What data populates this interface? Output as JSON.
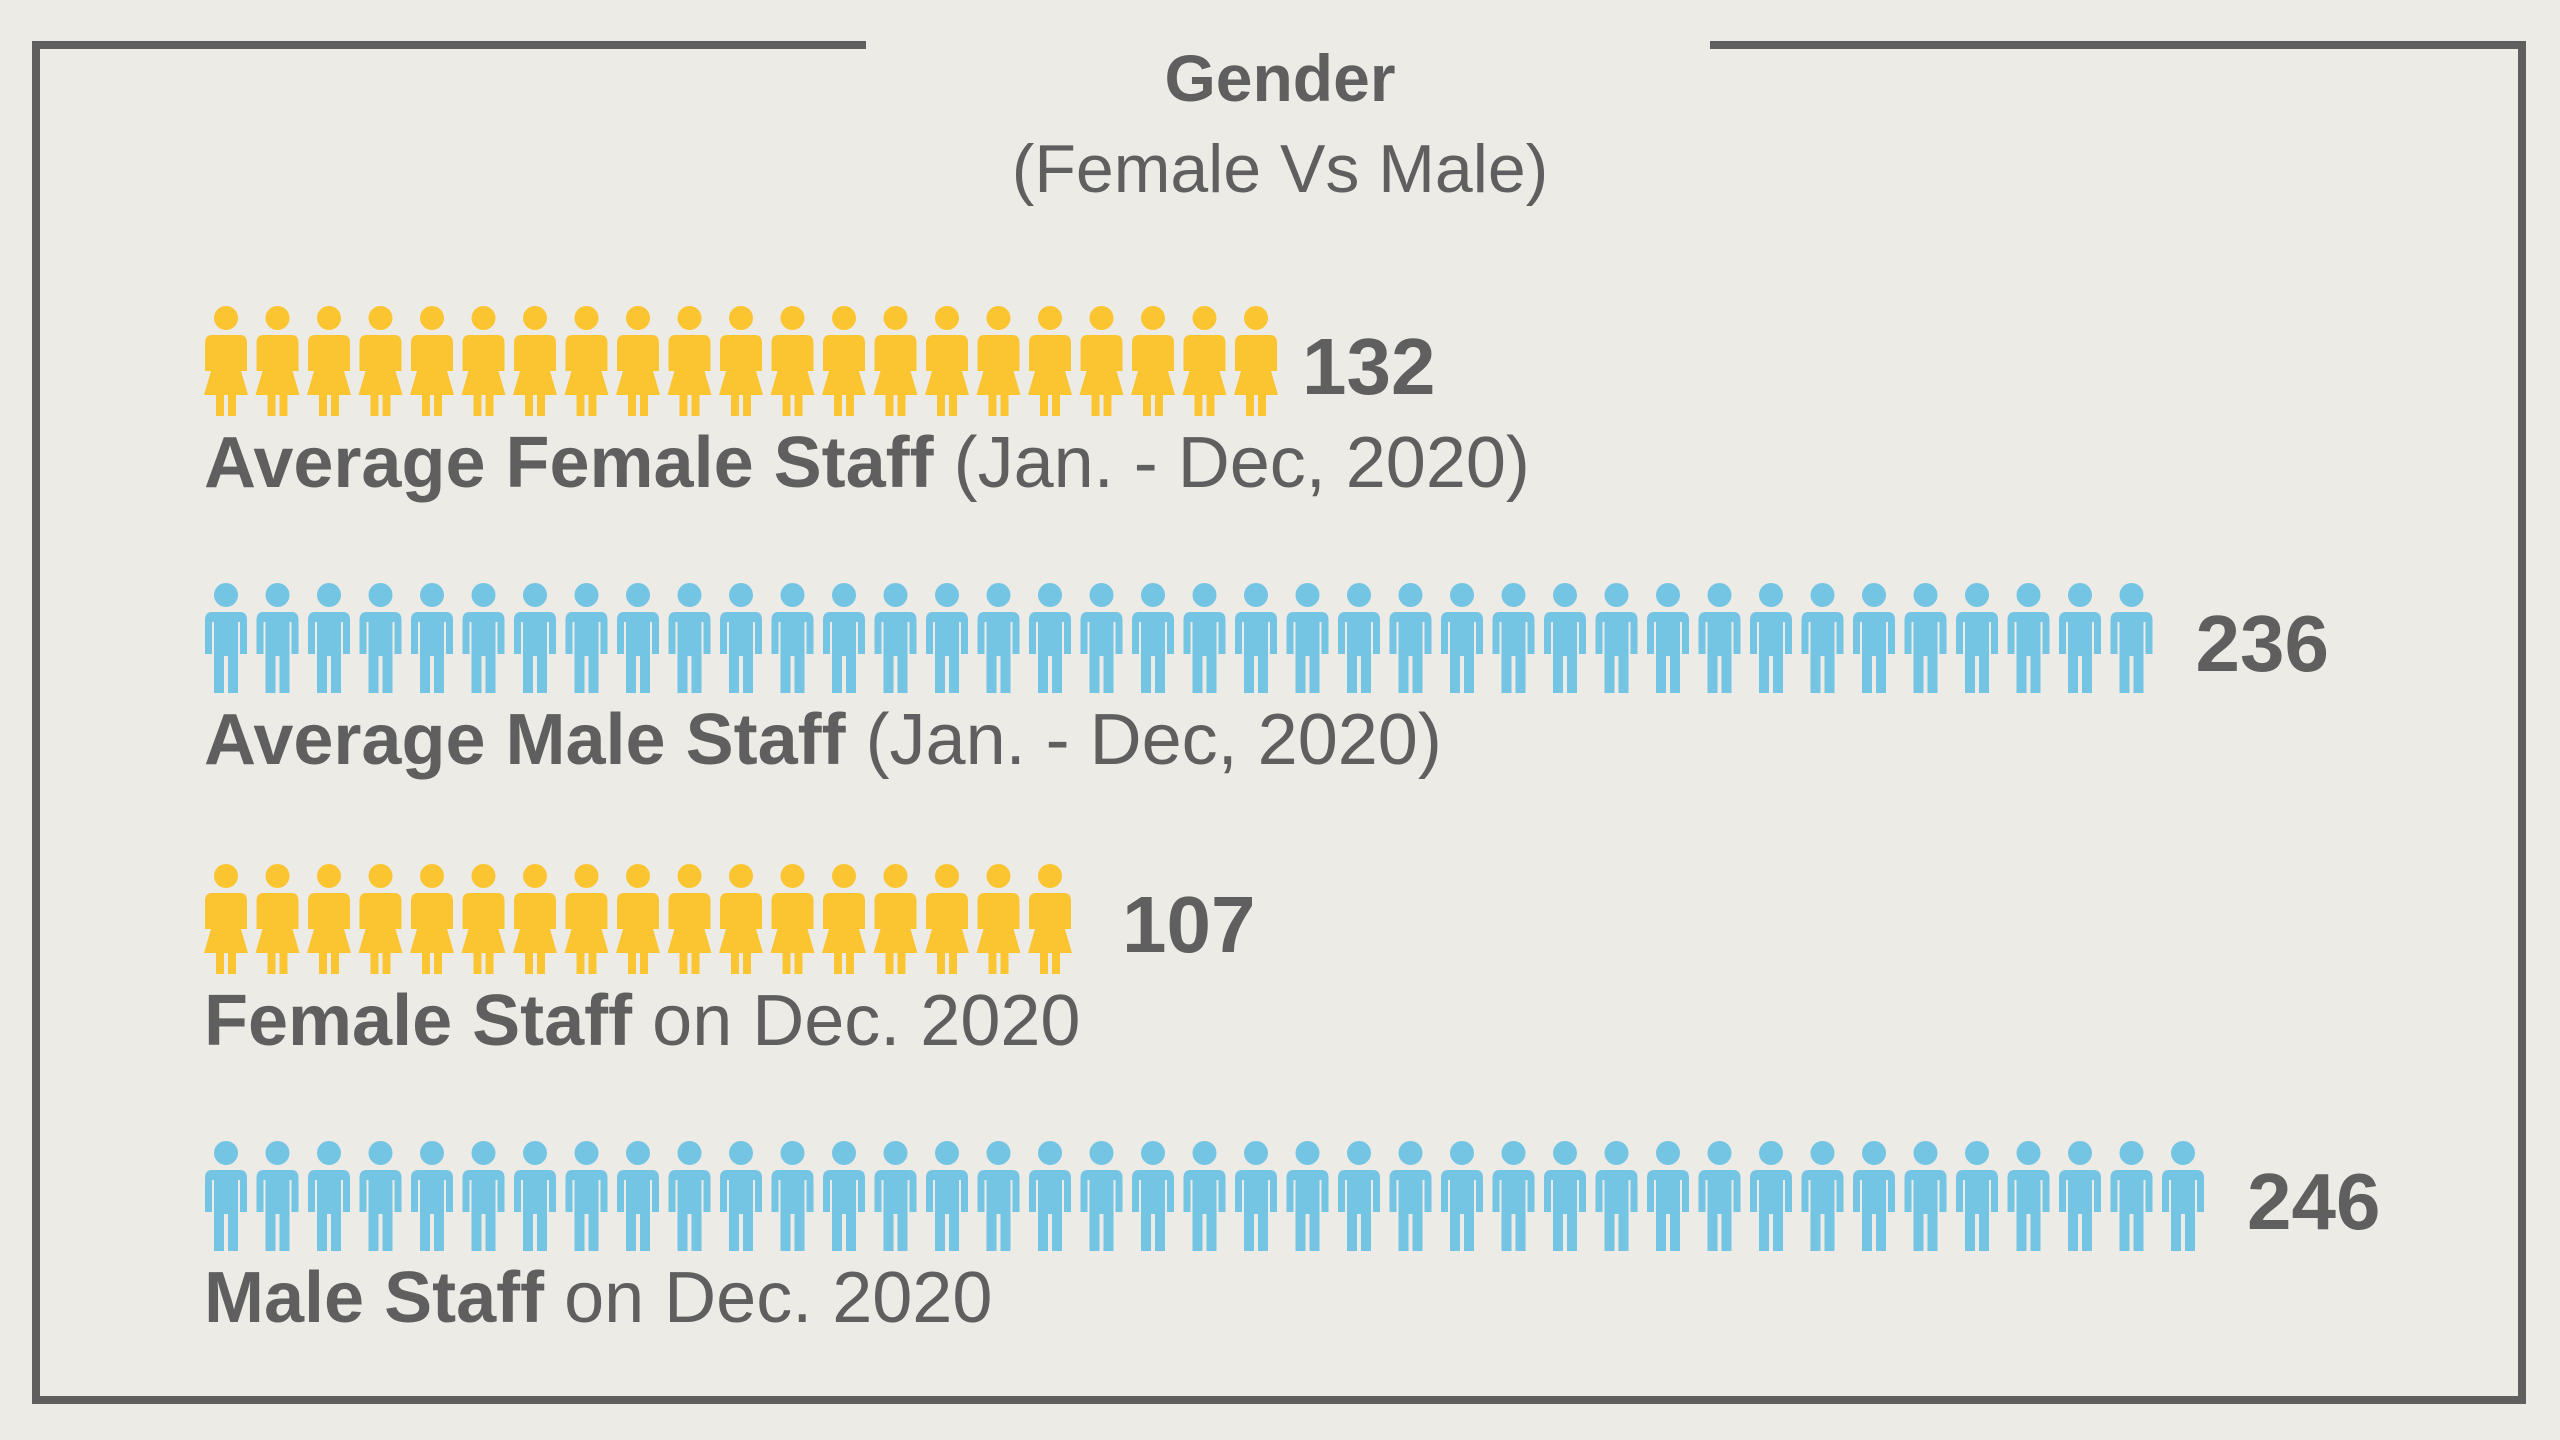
{
  "title": {
    "main": "Gender",
    "sub": "(Female Vs Male)"
  },
  "colors": {
    "female": "#fbc531",
    "male": "#74c4e4",
    "text": "#5f5f5f",
    "border": "#5f5f5f",
    "background": "#ecebe5"
  },
  "chart_data": {
    "type": "bar",
    "title": "Gender\n(Female Vs Male)",
    "categories": [
      "Average Female Staff (Jan. - Dec, 2020)",
      "Average Male Staff (Jan. - Dec, 2020)",
      "Female Staff on Dec. 2020",
      "Male Staff on Dec. 2020"
    ],
    "values": [
      132,
      236,
      107,
      246
    ],
    "rows": [
      {
        "label_bold": "Average Female Staff",
        "label_rest": " (Jan. - Dec, 2020)",
        "value": "132",
        "gender": "female",
        "icon_count": 21,
        "icon_name": "female-person-icon"
      },
      {
        "label_bold": "Average Male Staff",
        "label_rest": " (Jan. - Dec, 2020)",
        "value": "236",
        "gender": "male",
        "icon_count": 38,
        "icon_name": "male-person-icon"
      },
      {
        "label_bold": "Female Staff",
        "label_rest": " on Dec. 2020",
        "value": "107",
        "gender": "female",
        "icon_count": 17,
        "icon_name": "female-person-icon"
      },
      {
        "label_bold": "Male Staff",
        "label_rest": " on Dec. 2020",
        "value": "246",
        "gender": "male",
        "icon_count": 39,
        "icon_name": "male-person-icon"
      }
    ]
  }
}
